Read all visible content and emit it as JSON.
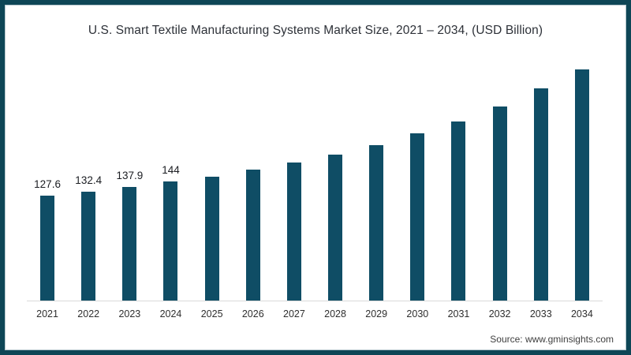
{
  "title": "U.S. Smart Textile Manufacturing Systems Market Size, 2021 – 2034, (USD Billion)",
  "source": "Source: www.gminsights.com",
  "colors": {
    "bar": "#0f4d65",
    "frame_border": "#0e4656",
    "axis_line": "#d9d9d9",
    "title_text": "#2d3138",
    "label_text": "#1b1d22"
  },
  "chart_data": {
    "type": "bar",
    "title": "U.S. Smart Textile Manufacturing Systems Market Size, 2021 – 2034, (USD Billion)",
    "xlabel": "",
    "ylabel": "USD Billion",
    "categories": [
      "2021",
      "2022",
      "2023",
      "2024",
      "2025",
      "2026",
      "2027",
      "2028",
      "2029",
      "2030",
      "2031",
      "2032",
      "2033",
      "2034"
    ],
    "values": [
      127.6,
      132.4,
      137.9,
      144,
      150.5,
      158.8,
      167.4,
      176.9,
      187.7,
      201.9,
      216.5,
      234.5,
      256.0,
      279.1
    ],
    "data_labels": [
      "127.6",
      "132.4",
      "137.9",
      "144",
      "",
      "",
      "",
      "",
      "",
      "",
      "",
      "",
      "",
      ""
    ],
    "ylim": [
      0,
      280
    ],
    "grid": false,
    "legend": "none",
    "y_axis_shown": false,
    "x_axis_line": true
  }
}
